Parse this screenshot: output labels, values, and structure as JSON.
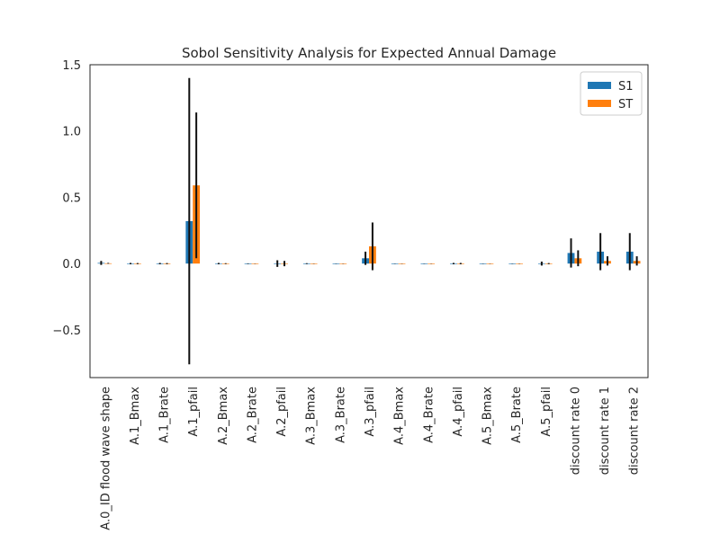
{
  "chart_data": {
    "type": "bar",
    "title": "Sobol Sensitivity Analysis for Expected Annual Damage",
    "xlabel": "",
    "ylabel": "",
    "ylim": [
      -0.86,
      1.5
    ],
    "yticks": [
      {
        "value": -0.5,
        "label": "−0.5"
      },
      {
        "value": 0.0,
        "label": "0.0"
      },
      {
        "value": 0.5,
        "label": "0.5"
      },
      {
        "value": 1.0,
        "label": "1.0"
      },
      {
        "value": 1.5,
        "label": "1.5"
      }
    ],
    "grid": false,
    "legend_position": "top-right",
    "categories": [
      "A.0_ID flood wave shape",
      "A.1_Bmax",
      "A.1_Brate",
      "A.1_pfail",
      "A.2_Bmax",
      "A.2_Brate",
      "A.2_pfail",
      "A.3_Bmax",
      "A.3_Brate",
      "A.3_pfail",
      "A.4_Bmax",
      "A.4_Brate",
      "A.4_pfail",
      "A.5_Bmax",
      "A.5_Brate",
      "A.5_pfail",
      "discount rate 0",
      "discount rate 1",
      "discount rate 2"
    ],
    "series": [
      {
        "name": "S1",
        "color": "#1f77b4",
        "values": [
          0.005,
          0.0,
          0.0,
          0.32,
          0.0,
          0.0,
          0.0,
          0.0,
          0.0,
          0.04,
          0.0,
          0.0,
          0.0,
          0.0,
          0.0,
          0.0,
          0.08,
          0.09,
          0.09
        ],
        "errors": [
          0.015,
          0.005,
          0.005,
          1.08,
          0.005,
          0.002,
          0.025,
          0.003,
          0.001,
          0.05,
          0.001,
          0.001,
          0.005,
          0.001,
          0.001,
          0.015,
          0.11,
          0.14,
          0.14
        ]
      },
      {
        "name": "ST",
        "color": "#ff7f0e",
        "values": [
          0.002,
          0.0,
          0.0,
          0.59,
          0.0,
          0.0,
          0.0,
          0.0,
          0.0,
          0.13,
          0.0,
          0.0,
          0.0,
          0.0,
          0.0,
          0.0,
          0.04,
          0.02,
          0.02
        ],
        "errors": [
          0.003,
          0.004,
          0.004,
          0.55,
          0.003,
          0.001,
          0.02,
          0.001,
          0.001,
          0.18,
          0.001,
          0.001,
          0.005,
          0.001,
          0.001,
          0.004,
          0.06,
          0.035,
          0.035
        ]
      }
    ]
  }
}
